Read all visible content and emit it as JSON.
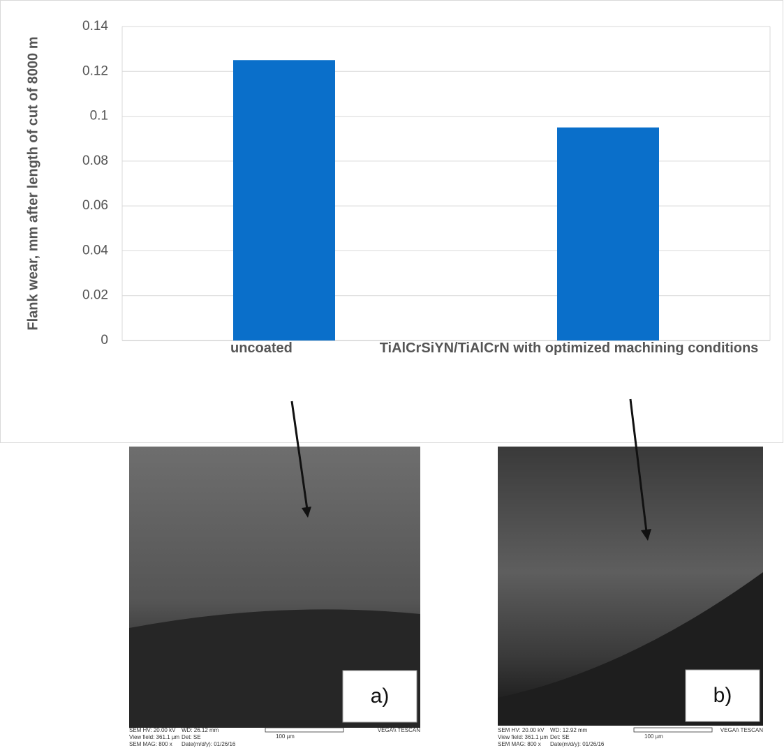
{
  "chart_data": {
    "type": "bar",
    "ylabel": "Flank wear, mm after length of cut of 8000 m",
    "categories": [
      "uncoated",
      "TiAlCrSiYN/TiAlCrN with optimized machining conditions"
    ],
    "values": [
      0.125,
      0.095
    ],
    "color": "#0a6fca",
    "ylim": [
      0,
      0.14
    ],
    "yticks": [
      0,
      0.02,
      0.04,
      0.06,
      0.08,
      0.1,
      0.12,
      0.14
    ],
    "grid": true
  },
  "panels": [
    {
      "label": "a)",
      "col1": [
        "SEM HV: 20.00 kV",
        "View field: 361.1 µm",
        "SEM MAG: 800 x"
      ],
      "col2": [
        "WD: 26.12 mm",
        "Det: SE",
        "Date(m/d/y): 01/26/16"
      ],
      "scale": "100 µm",
      "brand": "VEGA\\\\ TESCAN"
    },
    {
      "label": "b)",
      "col1": [
        "SEM HV: 20.00 kV",
        "View field: 361.1 µm",
        "SEM MAG: 800 x"
      ],
      "col2": [
        "WD: 12.92 mm",
        "Det: SE",
        "Date(m/d/y): 01/26/16"
      ],
      "scale": "100 µm",
      "brand": "VEGA\\\\ TESCAN"
    }
  ]
}
